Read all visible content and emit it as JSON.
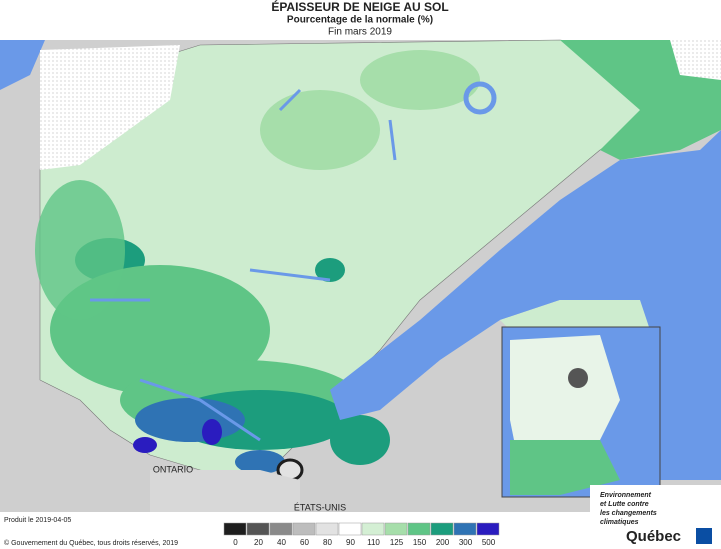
{
  "header": {
    "title": "ÉPAISSEUR DE NEIGE AU SOL",
    "subtitle": "Pourcentage de la normale (%)",
    "date": "Fin mars 2019"
  },
  "labels": {
    "ontario": "ONTARIO",
    "usa": "ÉTATS-UNIS"
  },
  "legend": {
    "ticks": [
      0,
      20,
      40,
      60,
      80,
      90,
      110,
      125,
      150,
      200,
      300,
      500
    ],
    "colors": [
      "#1e1e1e",
      "#555555",
      "#8a8a8a",
      "#bdbdbd",
      "#e2e2e2",
      "#ffffff",
      "#d4efd4",
      "#a6deaa",
      "#5fc586",
      "#1c9d7d",
      "#2f73b4",
      "#2a1cbf"
    ]
  },
  "footer": {
    "produced": "Produit le 2019-04-05",
    "copyright": "© Gouvernement du Québec, tous droits réservés, 2019",
    "ministry": [
      "Environnement",
      "et Lutte contre",
      "les changements",
      "climatiques"
    ],
    "brand": "Québec"
  }
}
